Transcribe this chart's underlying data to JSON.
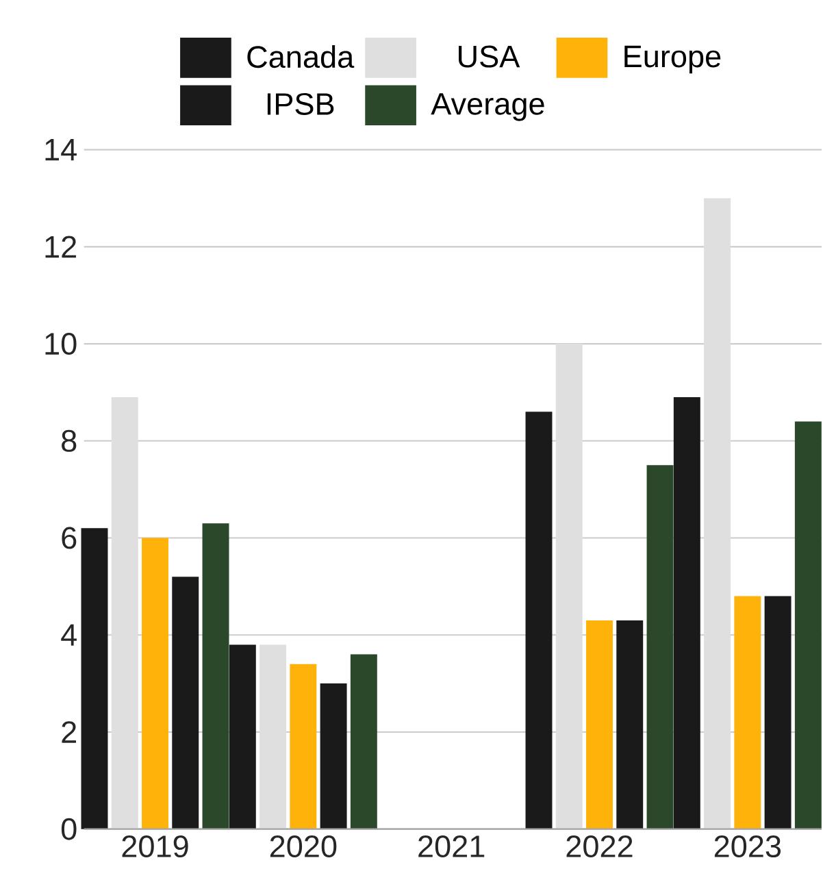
{
  "chart_data": {
    "type": "bar",
    "categories": [
      "2019",
      "2020",
      "2021",
      "2022",
      "2023"
    ],
    "series": [
      {
        "name": "Canada",
        "color": "#1a1a1a",
        "values": [
          6.2,
          3.8,
          null,
          8.6,
          8.9
        ]
      },
      {
        "name": "USA",
        "color": "#dfdfdf",
        "values": [
          8.9,
          3.8,
          null,
          10.0,
          13.0
        ]
      },
      {
        "name": "Europe",
        "color": "#ffb30a",
        "values": [
          6.0,
          3.4,
          null,
          4.3,
          4.8
        ]
      },
      {
        "name": "IPSB",
        "color": "#1a1a1a",
        "values": [
          5.2,
          3.0,
          null,
          4.3,
          4.8
        ]
      },
      {
        "name": "Average",
        "color": "#2b482b",
        "values": [
          6.3,
          3.6,
          null,
          7.5,
          8.4
        ]
      }
    ],
    "ylim": [
      0,
      14
    ],
    "yticks": [
      0,
      2,
      4,
      6,
      8,
      10,
      12,
      14
    ],
    "grid": "y",
    "legend": "top"
  }
}
